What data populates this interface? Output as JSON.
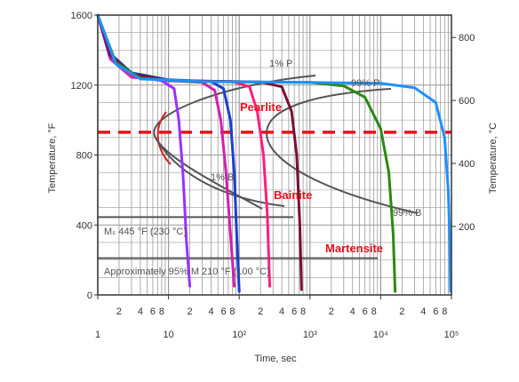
{
  "chart_data": {
    "type": "line",
    "title": "",
    "xlabel": "Time, sec",
    "ylabel_left": "Temperature, °F",
    "ylabel_right": "Temperature, °C",
    "x_scale": "log",
    "xlim": [
      1,
      100000
    ],
    "ylim": [
      0,
      1600
    ],
    "x_major_ticks": [
      {
        "value": 1,
        "label": "1"
      },
      {
        "value": 10,
        "label": "10"
      },
      {
        "value": 100,
        "label": "10²"
      },
      {
        "value": 1000,
        "label": "10³"
      },
      {
        "value": 10000,
        "label": "10⁴"
      },
      {
        "value": 100000,
        "label": "10⁵"
      }
    ],
    "x_minor_labels": [
      "2",
      "4",
      "6",
      "8"
    ],
    "y_left_ticks": [
      0,
      400,
      800,
      1200,
      1600
    ],
    "y_right_ticks": [
      200,
      400,
      600,
      800
    ],
    "grid": true,
    "annotations": {
      "p1": "1% P",
      "p99": "99% P",
      "b1": "1% B",
      "b99": "99% B",
      "ms": "Mₛ 445 °F (230 °C)",
      "m95": "Approximately 95% M 210 °F (100 °C)"
    },
    "regions": [
      "Pearlite",
      "Bainite",
      "Martensite"
    ],
    "reference_line": {
      "temperature_f": 930,
      "color": "#e8101c",
      "style": "dashed"
    },
    "ms_temperature_f": 445,
    "m95_temperature_f": 210,
    "colors": {
      "curve_gray": "#555555",
      "grid": "#9a9a9a",
      "region_text": "#e8101c"
    },
    "series": [
      {
        "color": "#9b30ff",
        "points": [
          [
            1,
            1600
          ],
          [
            1.5,
            1350
          ],
          [
            3,
            1250
          ],
          [
            8,
            1225
          ],
          [
            12,
            1180
          ],
          [
            14,
            1000
          ],
          [
            16,
            700
          ],
          [
            18,
            300
          ],
          [
            20,
            50
          ]
        ]
      },
      {
        "color": "#d020b0",
        "points": [
          [
            1,
            1600
          ],
          [
            1.6,
            1340
          ],
          [
            3,
            1245
          ],
          [
            10,
            1225
          ],
          [
            30,
            1215
          ],
          [
            45,
            1170
          ],
          [
            55,
            1000
          ],
          [
            65,
            700
          ],
          [
            75,
            350
          ],
          [
            85,
            50
          ]
        ]
      },
      {
        "color": "#1a3fd0",
        "points": [
          [
            1,
            1600
          ],
          [
            1.5,
            1380
          ],
          [
            3,
            1270
          ],
          [
            10,
            1230
          ],
          [
            40,
            1220
          ],
          [
            60,
            1180
          ],
          [
            75,
            1000
          ],
          [
            85,
            700
          ],
          [
            92,
            350
          ],
          [
            100,
            20
          ]
        ]
      },
      {
        "color": "#ff1f7a",
        "points": [
          [
            1,
            1600
          ],
          [
            1.6,
            1360
          ],
          [
            3,
            1260
          ],
          [
            10,
            1225
          ],
          [
            80,
            1220
          ],
          [
            140,
            1190
          ],
          [
            180,
            1050
          ],
          [
            220,
            800
          ],
          [
            250,
            450
          ],
          [
            270,
            50
          ]
        ]
      },
      {
        "color": "#7a0e3a",
        "points": [
          [
            1,
            1600
          ],
          [
            1.5,
            1370
          ],
          [
            3,
            1265
          ],
          [
            10,
            1225
          ],
          [
            200,
            1218
          ],
          [
            400,
            1190
          ],
          [
            550,
            1050
          ],
          [
            650,
            800
          ],
          [
            720,
            400
          ],
          [
            760,
            30
          ]
        ]
      },
      {
        "color": "#2a8a10",
        "points": [
          [
            1,
            1600
          ],
          [
            1.8,
            1330
          ],
          [
            4,
            1240
          ],
          [
            20,
            1220
          ],
          [
            1000,
            1215
          ],
          [
            3000,
            1195
          ],
          [
            6000,
            1130
          ],
          [
            10000,
            950
          ],
          [
            13000,
            700
          ],
          [
            15000,
            350
          ],
          [
            16000,
            20
          ]
        ]
      },
      {
        "color": "#1e90ff",
        "points": [
          [
            1,
            1600
          ],
          [
            1.8,
            1320
          ],
          [
            4,
            1235
          ],
          [
            30,
            1220
          ],
          [
            1000,
            1215
          ],
          [
            10000,
            1210
          ],
          [
            30000,
            1185
          ],
          [
            60000,
            1100
          ],
          [
            80000,
            900
          ],
          [
            90000,
            600
          ],
          [
            95000,
            300
          ],
          [
            97000,
            20
          ]
        ]
      }
    ]
  }
}
